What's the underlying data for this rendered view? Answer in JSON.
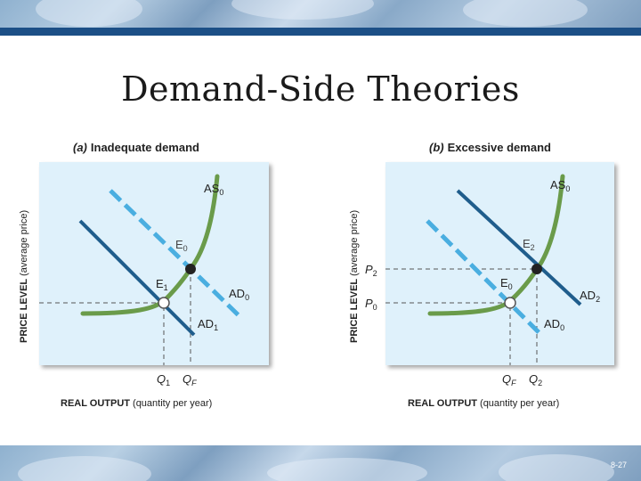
{
  "slide": {
    "title": "Demand-Side Theories",
    "page_number": "8-27"
  },
  "colors": {
    "band": "#1c4f86",
    "plot_bg": "#dff1fb",
    "as_curve": "#6a9b4a",
    "ad_dark": "#1f5d8c",
    "ad_dashed": "#4aaee0",
    "guide": "#555555"
  },
  "panels": [
    {
      "heading_tag": "(a)",
      "heading_text": "Inadequate demand",
      "ylabel_bold": "PRICE LEVEL",
      "ylabel_rest": "(average price)",
      "xlabel_bold": "REAL OUTPUT",
      "xlabel_rest": "(quantity per year)",
      "curves": {
        "as": {
          "name": "AS",
          "sub": "0"
        },
        "ad_dashed": {
          "name": "AD",
          "sub": "0"
        },
        "ad_solid": {
          "name": "AD",
          "sub": "1"
        }
      },
      "points": {
        "filled": {
          "name": "E",
          "sub": "0"
        },
        "open": {
          "name": "E",
          "sub": "1"
        }
      },
      "x_ticks": [
        {
          "name": "Q",
          "sub": "1"
        },
        {
          "name": "Q",
          "sub": "F"
        }
      ],
      "y_ticks": []
    },
    {
      "heading_tag": "(b)",
      "heading_text": "Excessive demand",
      "ylabel_bold": "PRICE LEVEL",
      "ylabel_rest": "(average price)",
      "xlabel_bold": "REAL OUTPUT",
      "xlabel_rest": "(quantity per year)",
      "curves": {
        "as": {
          "name": "AS",
          "sub": "0"
        },
        "ad_solid": {
          "name": "AD",
          "sub": "2"
        },
        "ad_dashed": {
          "name": "AD",
          "sub": "0"
        }
      },
      "points": {
        "filled": {
          "name": "E",
          "sub": "2"
        },
        "open": {
          "name": "E",
          "sub": "0"
        }
      },
      "x_ticks": [
        {
          "name": "Q",
          "sub": "F"
        },
        {
          "name": "Q",
          "sub": "2"
        }
      ],
      "y_ticks": [
        {
          "name": "P",
          "sub": "2"
        },
        {
          "name": "P",
          "sub": "0"
        }
      ]
    }
  ]
}
